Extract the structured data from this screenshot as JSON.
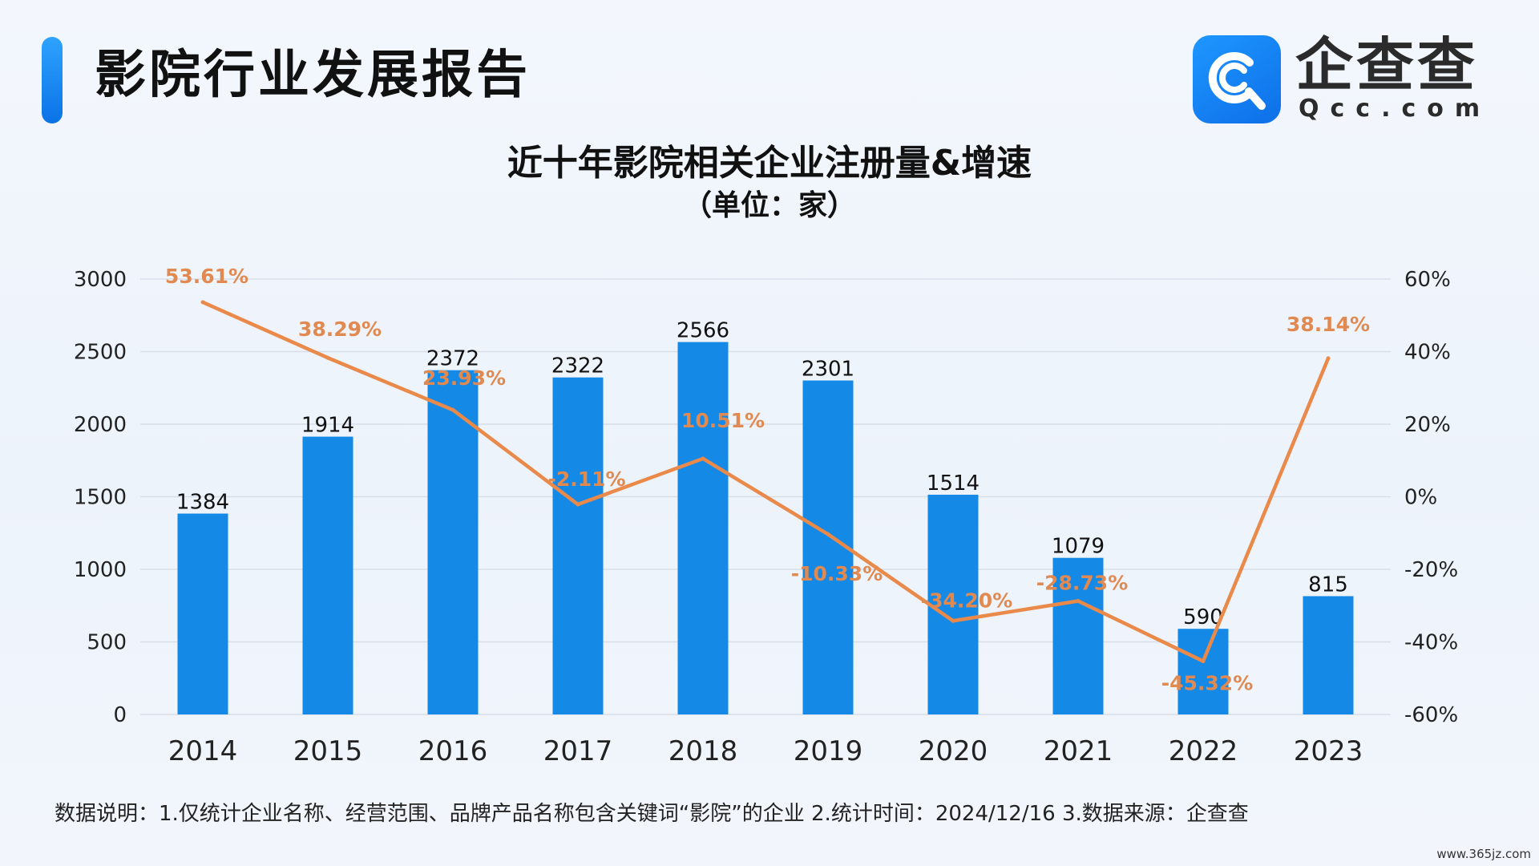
{
  "header": {
    "report_title": "影院行业发展报告"
  },
  "logo": {
    "name": "企查查",
    "domain": "Qcc.com",
    "icon": "qcc-magnifier-logo-icon"
  },
  "colors": {
    "bar": "#1589E6",
    "line": "#E9894A",
    "line_label": "#E08A52",
    "accent": "#1A8CF0",
    "grid": "#D8DEE8"
  },
  "chart_data": {
    "type": "bar",
    "title": "近十年影院相关企业注册量&增速",
    "subtitle": "（单位：家）",
    "categories": [
      "2014",
      "2015",
      "2016",
      "2017",
      "2018",
      "2019",
      "2020",
      "2021",
      "2022",
      "2023"
    ],
    "series": [
      {
        "type": "bar",
        "axis": "left",
        "values": [
          1384,
          1914,
          2372,
          2322,
          2566,
          2301,
          1514,
          1079,
          590,
          815
        ],
        "labels": [
          "1384",
          "1914",
          "2372",
          "2322",
          "2566",
          "2301",
          "1514",
          "1079",
          "590",
          "815"
        ]
      },
      {
        "type": "line",
        "axis": "right",
        "values": [
          53.61,
          38.29,
          23.93,
          -2.11,
          10.51,
          -10.33,
          -34.2,
          -28.73,
          -45.32,
          38.14
        ],
        "labels": [
          "53.61%",
          "38.29%",
          "23.93%",
          "-2.11%",
          "10.51%",
          "-10.33%",
          "-34.20%",
          "-28.73%",
          "-45.32%",
          "38.14%"
        ]
      }
    ],
    "y_left": {
      "range": [
        0,
        3000
      ],
      "ticks": [
        "0",
        "500",
        "1000",
        "1500",
        "2000",
        "2500",
        "3000"
      ]
    },
    "y_right": {
      "range": [
        -60,
        60
      ],
      "ticks": [
        "-60%",
        "-40%",
        "-20%",
        "0%",
        "20%",
        "40%",
        "60%"
      ]
    },
    "grid": true,
    "legend": "none"
  },
  "footnote": "数据说明：1.仅统计企业名称、经营范围、品牌产品名称包含关键词“影院”的企业   2.统计时间：2024/12/16    3.数据来源：企查查",
  "watermark": "www.365jz.com"
}
